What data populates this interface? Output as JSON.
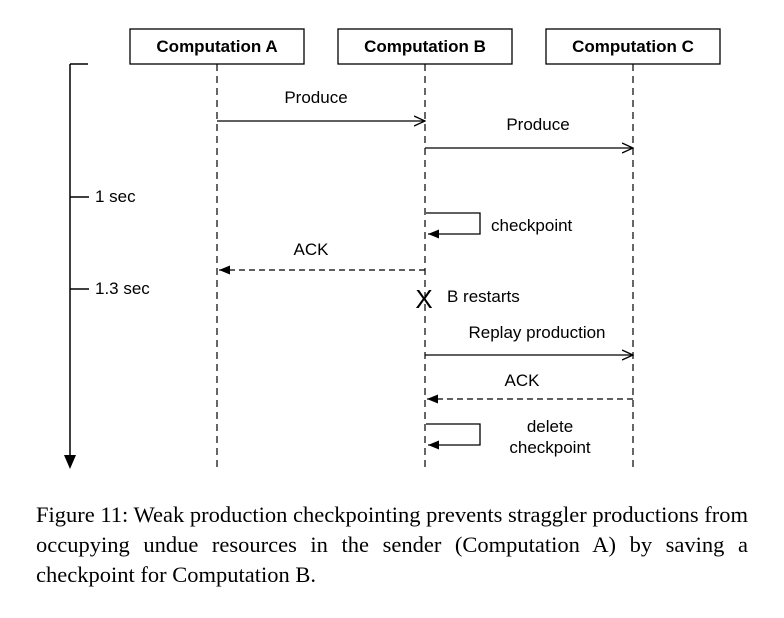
{
  "participants": [
    {
      "label": "Computation A"
    },
    {
      "label": "Computation B"
    },
    {
      "label": "Computation C"
    }
  ],
  "time_marks": [
    {
      "label": "1 sec"
    },
    {
      "label": "1.3 sec"
    }
  ],
  "messages": [
    {
      "from": "Computation A",
      "to": "Computation B",
      "label": "Produce",
      "style": "solid"
    },
    {
      "from": "Computation B",
      "to": "Computation C",
      "label": "Produce",
      "style": "solid"
    },
    {
      "from": "Computation B",
      "to": "Computation B",
      "label": "checkpoint",
      "style": "self"
    },
    {
      "from": "Computation B",
      "to": "Computation A",
      "label": "ACK",
      "style": "dashed"
    },
    {
      "from": "Computation B",
      "to": "Computation B",
      "label": "B restarts",
      "style": "failure",
      "marker": "X"
    },
    {
      "from": "Computation B",
      "to": "Computation C",
      "label": "Replay production",
      "style": "solid"
    },
    {
      "from": "Computation C",
      "to": "Computation B",
      "label": "ACK",
      "style": "dashed"
    },
    {
      "from": "Computation B",
      "to": "Computation B",
      "label_lines": [
        "delete",
        "checkpoint"
      ],
      "style": "self"
    }
  ],
  "caption": "Figure 11: Weak production checkpointing prevents straggler productions from occupying undue resources in the sender (Computation A) by saving a checkpoint for Computation B."
}
